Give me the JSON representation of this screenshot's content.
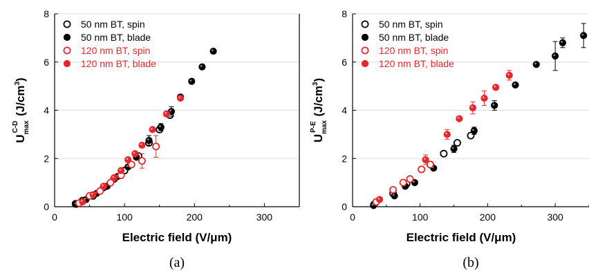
{
  "chart_data": [
    {
      "type": "scatter",
      "panel_label": "(a)",
      "xlabel": "Electric field (V/μm)",
      "ylabel_main": "U",
      "ylabel_sub": "max",
      "ylabel_sup": "C-D",
      "ylabel_unit": "(J/cm",
      "ylabel_unit_sup": "3",
      "ylabel_unit_end": ")",
      "xlim": [
        0,
        350
      ],
      "ylim": [
        0,
        8
      ],
      "xticks": [
        "0",
        "100",
        "200",
        "300"
      ],
      "yticks": [
        "0",
        "2",
        "4",
        "6",
        "8"
      ],
      "grid": true,
      "legend_position": "top-left",
      "series": [
        {
          "name": "50 nm BT, spin",
          "color": "#000000",
          "marker": "open-circle",
          "points": [
            {
              "x": 30,
              "y": 0.12
            },
            {
              "x": 40,
              "y": 0.25
            },
            {
              "x": 55,
              "y": 0.45
            },
            {
              "x": 70,
              "y": 0.8
            },
            {
              "x": 85,
              "y": 1.15
            },
            {
              "x": 100,
              "y": 1.5
            },
            {
              "x": 120,
              "y": 2.1
            },
            {
              "x": 135,
              "y": 2.65
            },
            {
              "x": 150,
              "y": 3.2
            },
            {
              "x": 165,
              "y": 3.8
            }
          ]
        },
        {
          "name": "50 nm BT, blade",
          "color": "#000000",
          "marker": "filled-circle",
          "points": [
            {
              "x": 31,
              "y": 0.1
            },
            {
              "x": 45,
              "y": 0.3
            },
            {
              "x": 60,
              "y": 0.55
            },
            {
              "x": 75,
              "y": 0.85
            },
            {
              "x": 90,
              "y": 1.25
            },
            {
              "x": 105,
              "y": 1.65
            },
            {
              "x": 117,
              "y": 2.05
            },
            {
              "x": 135,
              "y": 2.75
            },
            {
              "x": 152,
              "y": 3.3
            },
            {
              "x": 167,
              "y": 3.95
            },
            {
              "x": 180,
              "y": 4.55
            },
            {
              "x": 196,
              "y": 5.2
            },
            {
              "x": 211,
              "y": 5.8
            },
            {
              "x": 227,
              "y": 6.45
            }
          ],
          "errors": [
            0,
            0,
            0,
            0,
            0,
            0,
            0,
            0.2,
            0.15,
            0.2,
            0.1,
            0.1,
            0.1,
            0.1
          ]
        },
        {
          "name": "120 nm BT, spin",
          "color": "#e8262b",
          "marker": "open-circle",
          "points": [
            {
              "x": 35,
              "y": 0.15
            },
            {
              "x": 50,
              "y": 0.45
            },
            {
              "x": 65,
              "y": 0.65
            },
            {
              "x": 80,
              "y": 1.0
            },
            {
              "x": 95,
              "y": 1.3
            },
            {
              "x": 110,
              "y": 1.75
            },
            {
              "x": 125,
              "y": 1.9
            },
            {
              "x": 145,
              "y": 2.5
            }
          ],
          "errors": [
            0,
            0,
            0,
            0,
            0,
            0,
            0.3,
            0.45
          ]
        },
        {
          "name": "120 nm BT, blade",
          "color": "#e8262b",
          "marker": "filled-circle",
          "points": [
            {
              "x": 40,
              "y": 0.2
            },
            {
              "x": 55,
              "y": 0.5
            },
            {
              "x": 70,
              "y": 0.85
            },
            {
              "x": 85,
              "y": 1.2
            },
            {
              "x": 95,
              "y": 1.5
            },
            {
              "x": 105,
              "y": 1.95
            },
            {
              "x": 115,
              "y": 2.2
            },
            {
              "x": 125,
              "y": 2.55
            },
            {
              "x": 140,
              "y": 3.2
            },
            {
              "x": 160,
              "y": 3.85
            },
            {
              "x": 180,
              "y": 4.5
            }
          ]
        }
      ]
    },
    {
      "type": "scatter",
      "panel_label": "(b)",
      "xlabel": "Electric field (V/μm)",
      "ylabel_main": "U",
      "ylabel_sub": "max",
      "ylabel_sup": "P-E",
      "ylabel_unit": "(J/cm",
      "ylabel_unit_sup": "3",
      "ylabel_unit_end": ")",
      "xlim": [
        0,
        350
      ],
      "ylim": [
        0,
        8
      ],
      "xticks": [
        "0",
        "100",
        "200",
        "300"
      ],
      "yticks": [
        "0",
        "2",
        "4",
        "6",
        "8"
      ],
      "grid": true,
      "legend_position": "top-left",
      "series": [
        {
          "name": "50 nm BT, spin",
          "color": "#000000",
          "marker": "open-circle",
          "points": [
            {
              "x": 32,
              "y": 0.1
            },
            {
              "x": 60,
              "y": 0.55
            },
            {
              "x": 80,
              "y": 0.95
            },
            {
              "x": 115,
              "y": 1.75
            },
            {
              "x": 135,
              "y": 2.2
            },
            {
              "x": 155,
              "y": 2.65
            },
            {
              "x": 175,
              "y": 2.95
            }
          ]
        },
        {
          "name": "50 nm BT, blade",
          "color": "#000000",
          "marker": "filled-circle",
          "points": [
            {
              "x": 31,
              "y": 0.05
            },
            {
              "x": 62,
              "y": 0.45
            },
            {
              "x": 78,
              "y": 0.85
            },
            {
              "x": 92,
              "y": 1.0
            },
            {
              "x": 120,
              "y": 1.6
            },
            {
              "x": 150,
              "y": 2.4
            },
            {
              "x": 180,
              "y": 3.15
            },
            {
              "x": 210,
              "y": 4.2
            },
            {
              "x": 241,
              "y": 5.05
            },
            {
              "x": 272,
              "y": 5.9
            },
            {
              "x": 300,
              "y": 6.25
            },
            {
              "x": 311,
              "y": 6.8
            },
            {
              "x": 342,
              "y": 7.1
            }
          ],
          "errors": [
            0,
            0,
            0,
            0,
            0,
            0.15,
            0.15,
            0.2,
            0,
            0,
            0.6,
            0.2,
            0.5
          ]
        },
        {
          "name": "120 nm BT, spin",
          "color": "#e8262b",
          "marker": "open-circle",
          "points": [
            {
              "x": 35,
              "y": 0.2
            },
            {
              "x": 60,
              "y": 0.7
            },
            {
              "x": 75,
              "y": 1.0
            },
            {
              "x": 85,
              "y": 1.15
            },
            {
              "x": 102,
              "y": 1.55
            },
            {
              "x": 115,
              "y": 1.75
            }
          ]
        },
        {
          "name": "120 nm BT, blade",
          "color": "#e8262b",
          "marker": "filled-circle",
          "points": [
            {
              "x": 40,
              "y": 0.3
            },
            {
              "x": 108,
              "y": 1.95
            },
            {
              "x": 140,
              "y": 3.0
            },
            {
              "x": 158,
              "y": 3.65
            },
            {
              "x": 178,
              "y": 4.1
            },
            {
              "x": 195,
              "y": 4.5
            },
            {
              "x": 212,
              "y": 4.95
            },
            {
              "x": 232,
              "y": 5.45
            }
          ],
          "errors": [
            0,
            0.2,
            0.2,
            0,
            0.25,
            0.3,
            0,
            0.2
          ]
        }
      ]
    }
  ]
}
